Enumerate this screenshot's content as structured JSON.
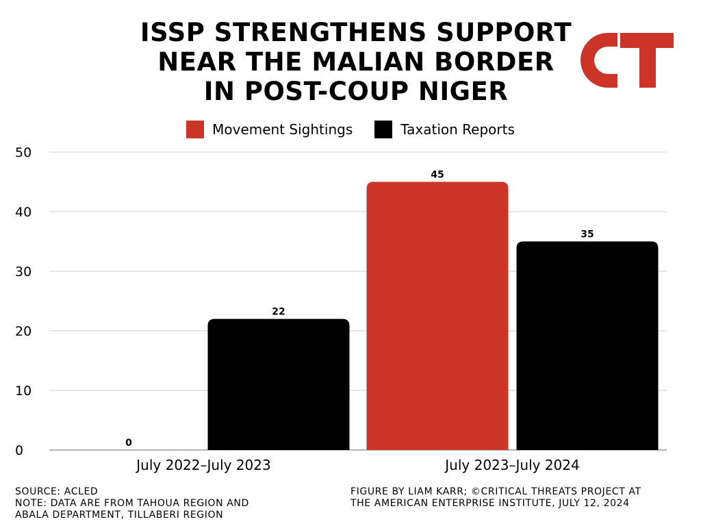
{
  "title_lines": [
    "ISSP STRENGTHENS SUPPORT",
    "NEAR THE MALIAN BORDER",
    "IN POST-COUP NIGER"
  ],
  "logo": {
    "text": "CT",
    "color": "#CB3426"
  },
  "chart_data": {
    "type": "bar",
    "title": "ISSP STRENGTHENS SUPPORT NEAR THE MALIAN BORDER IN POST-COUP NIGER",
    "categories": [
      "July 2022–July 2023",
      "July 2023–July 2024"
    ],
    "series": [
      {
        "name": "Movement Sightings",
        "color": "#CB3426",
        "values": [
          0,
          45
        ]
      },
      {
        "name": "Taxation Reports",
        "color": "#000000",
        "values": [
          22,
          35
        ]
      }
    ],
    "ylim": [
      0,
      50
    ],
    "yticks": [
      0,
      10,
      20,
      30,
      40,
      50
    ],
    "grid": true,
    "legend": "top-center",
    "data_labels": true
  },
  "footer": {
    "left": [
      "SOURCE: ACLED",
      "NOTE: DATA ARE FROM TAHOUA REGION AND",
      "ABALA DEPARTMENT, TILLABERI REGION"
    ],
    "right": [
      "FIGURE BY LIAM KARR; ©CRITICAL THREATS PROJECT AT",
      "THE AMERICAN ENTERPRISE INSTITUTE, JULY 12, 2024"
    ]
  }
}
